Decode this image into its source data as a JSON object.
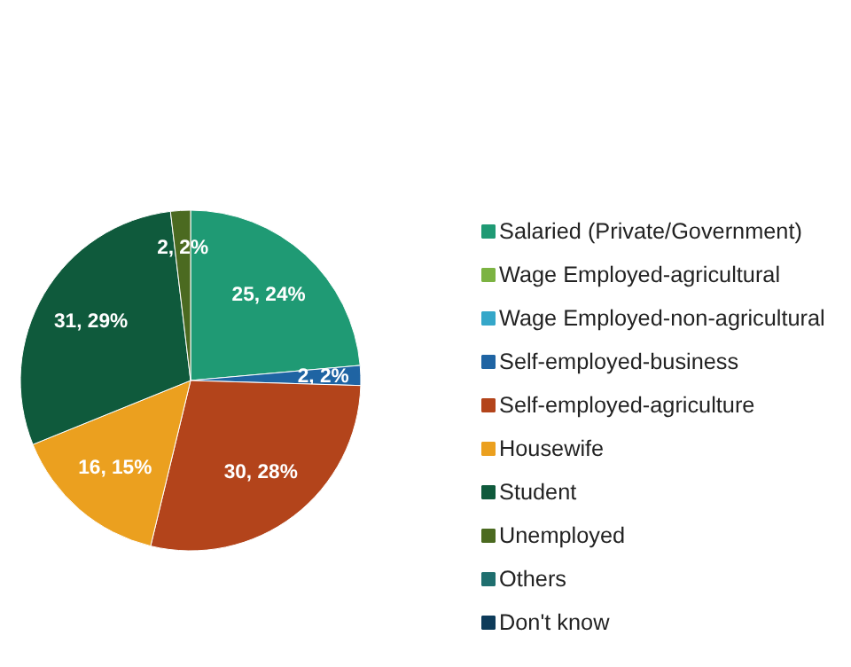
{
  "chart_data": {
    "type": "pie",
    "categories": [
      "Salaried (Private/Government)",
      "Wage Employed-agricultural",
      "Wage Employed-non-agricultural",
      "Self-employed-business",
      "Self-employed-agriculture",
      "Housewife",
      "Student",
      "Unemployed",
      "Others",
      "Don't know"
    ],
    "values": [
      25,
      0,
      0,
      2,
      30,
      16,
      31,
      2,
      0,
      0
    ],
    "colors": [
      "#1f9a74",
      "#7cb342",
      "#35a7c9",
      "#1f64a3",
      "#b3441b",
      "#eba01f",
      "#0f5a3c",
      "#4b6a20",
      "#1f6f6f",
      "#0d3b5a"
    ],
    "value_labels": [
      "25, 24%",
      null,
      null,
      "2, 2%",
      "30, 28%",
      "16, 15%",
      "31, 29%",
      "2, 2%",
      null,
      null
    ],
    "legend": "right"
  }
}
